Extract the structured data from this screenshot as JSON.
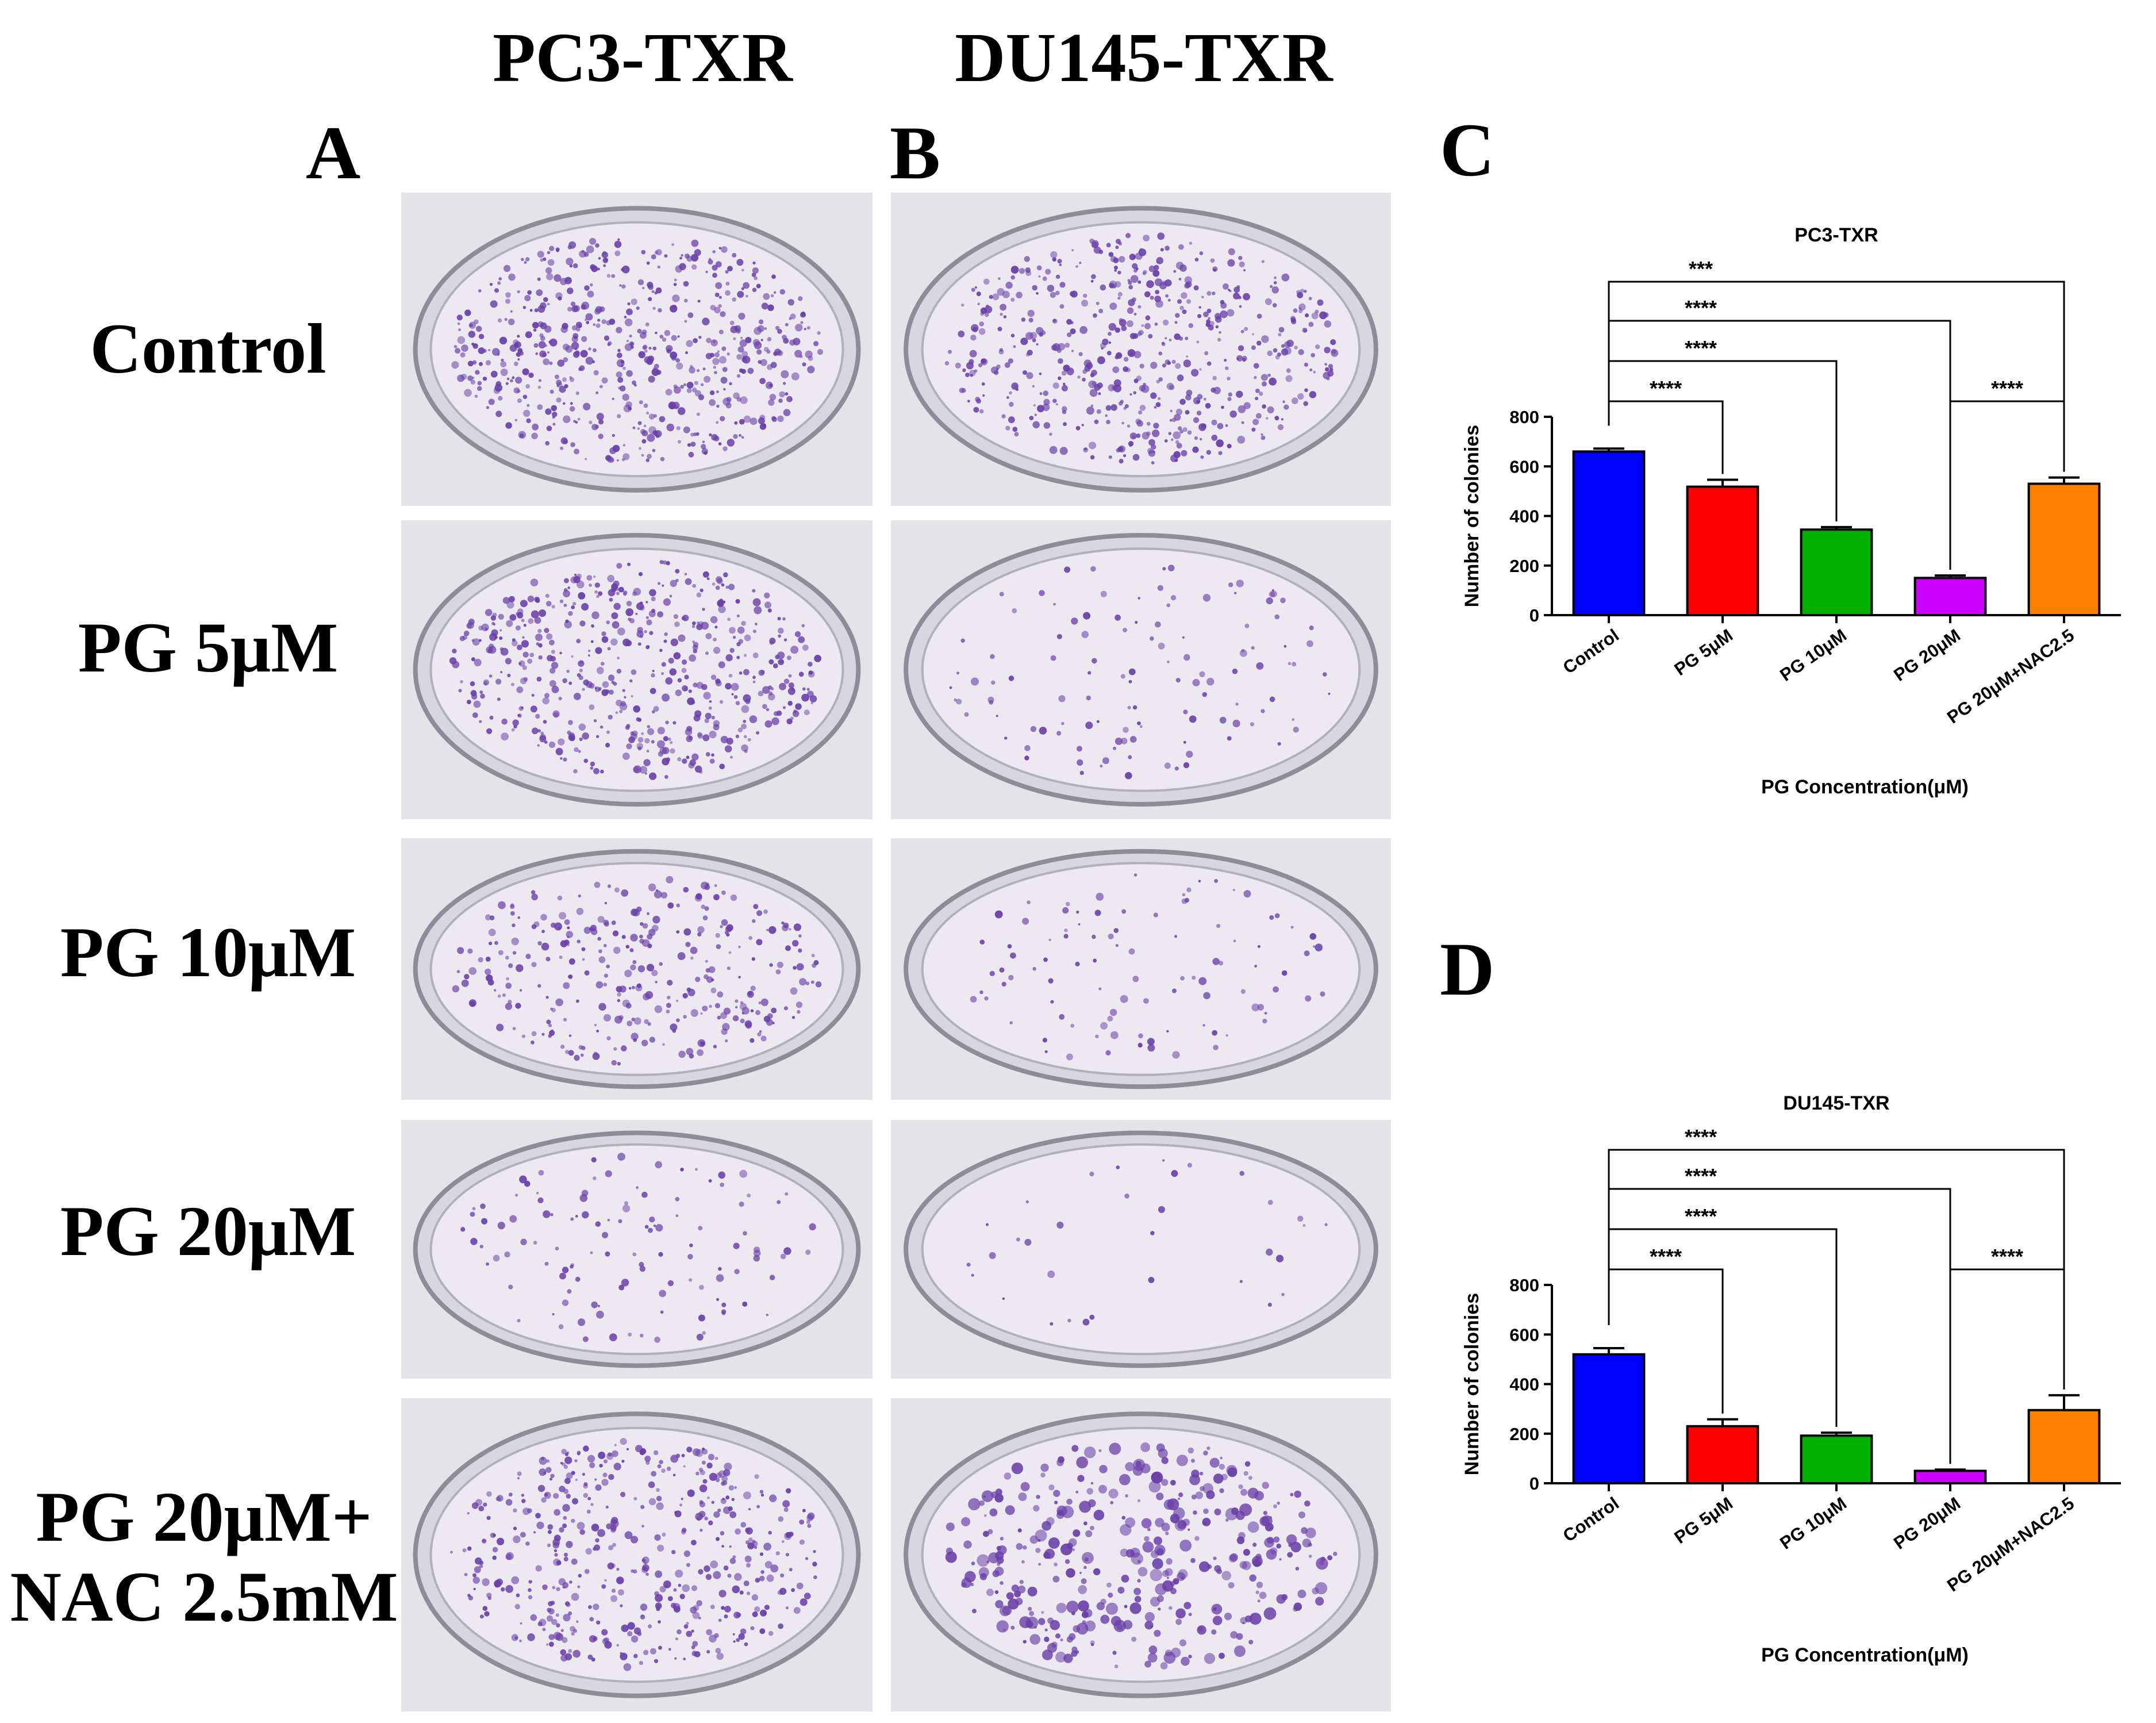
{
  "column_headers": [
    "PC3-TXR",
    "DU145-TXR"
  ],
  "panel_letters": {
    "a": "A",
    "b": "B",
    "c": "C",
    "d": "D"
  },
  "row_labels": [
    {
      "lines": [
        "Control"
      ]
    },
    {
      "lines": [
        "PG 5μM"
      ]
    },
    {
      "lines": [
        "PG 10μM"
      ]
    },
    {
      "lines": [
        "PG 20μM"
      ]
    },
    {
      "lines": [
        "PG 20μM+",
        "NAC 2.5mM"
      ]
    }
  ],
  "plate_photos": {
    "description_only": false,
    "stain_color": "#6a3fa8",
    "pc3_colony_level": [
      0.95,
      0.85,
      0.5,
      0.18,
      0.75
    ],
    "du145_colony_level": [
      0.9,
      0.18,
      0.15,
      0.05,
      0.6
    ]
  },
  "chart_data": [
    {
      "type": "bar",
      "panel": "C",
      "title": "PC3-TXR",
      "xlabel": "PG Concentration(μM)",
      "ylabel": "Number of colonies",
      "ylim": [
        0,
        800
      ],
      "yticks": [
        0,
        200,
        400,
        600,
        800
      ],
      "categories": [
        "Control",
        "PG 5μM",
        "PG 10μM",
        "PG 20μM",
        "PG 20μM+NAC2.5"
      ],
      "values": [
        660,
        518,
        345,
        150,
        530
      ],
      "errors": [
        12,
        28,
        10,
        10,
        25
      ],
      "colors": [
        "#0000ff",
        "#ff0000",
        "#00b000",
        "#cc00ff",
        "#ff8000"
      ],
      "grid": false,
      "significance": [
        {
          "from": 0,
          "to": 1,
          "label": "****",
          "level": 5
        },
        {
          "from": 3,
          "to": 4,
          "label": "****",
          "level": 5
        },
        {
          "from": 0,
          "to": 2,
          "label": "****",
          "level": 4
        },
        {
          "from": 0,
          "to": 3,
          "label": "****",
          "level": 3
        },
        {
          "from": 0,
          "to": 4,
          "label": "***",
          "level": 2
        }
      ]
    },
    {
      "type": "bar",
      "panel": "D",
      "title": "DU145-TXR",
      "xlabel": "PG Concentration(μM)",
      "ylabel": "Number of colonies",
      "ylim": [
        0,
        800
      ],
      "yticks": [
        0,
        200,
        400,
        600,
        800
      ],
      "categories": [
        "Control",
        "PG 5μM",
        "PG 10μM",
        "PG 20μM",
        "PG 20μM+NAC2.5"
      ],
      "values": [
        520,
        230,
        192,
        50,
        295
      ],
      "errors": [
        25,
        28,
        12,
        5,
        60
      ],
      "colors": [
        "#0000ff",
        "#ff0000",
        "#00b000",
        "#cc00ff",
        "#ff8000"
      ],
      "grid": false,
      "significance": [
        {
          "from": 0,
          "to": 1,
          "label": "****",
          "level": 5
        },
        {
          "from": 3,
          "to": 4,
          "label": "****",
          "level": 5
        },
        {
          "from": 0,
          "to": 2,
          "label": "****",
          "level": 4
        },
        {
          "from": 0,
          "to": 3,
          "label": "****",
          "level": 3
        },
        {
          "from": 0,
          "to": 4,
          "label": "****",
          "level": 2
        }
      ]
    }
  ]
}
